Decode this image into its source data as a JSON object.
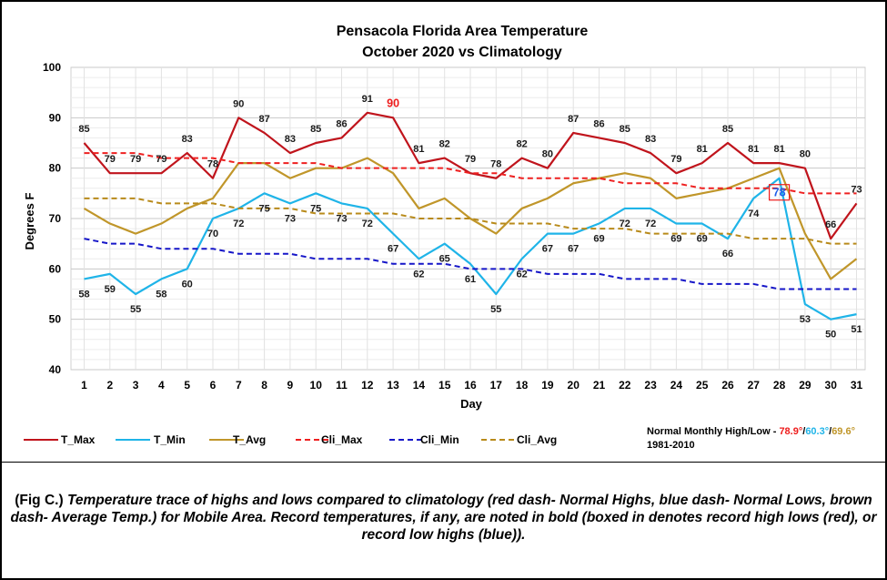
{
  "chart_data": {
    "type": "line",
    "title": "Pensacola Florida Area Temperature",
    "subtitle": "October 2020 vs Climatology",
    "xlabel": "Day",
    "ylabel": "Degrees F",
    "ylim": [
      40,
      100
    ],
    "yticks": [
      40,
      50,
      60,
      70,
      80,
      90,
      100
    ],
    "grid": true,
    "legend_position": "bottom",
    "x": [
      1,
      2,
      3,
      4,
      5,
      6,
      7,
      8,
      9,
      10,
      11,
      12,
      13,
      14,
      15,
      16,
      17,
      18,
      19,
      20,
      21,
      22,
      23,
      24,
      25,
      26,
      27,
      28,
      29,
      30,
      31
    ],
    "series": [
      {
        "name": "T_Max",
        "color": "#c0141c",
        "dash": false,
        "values": [
          85,
          79,
          79,
          79,
          83,
          78,
          90,
          87,
          83,
          85,
          86,
          91,
          90,
          81,
          82,
          79,
          78,
          82,
          80,
          87,
          86,
          85,
          83,
          79,
          81,
          85,
          81,
          81,
          80,
          66,
          73
        ]
      },
      {
        "name": "T_Min",
        "color": "#1fb4e8",
        "dash": false,
        "values": [
          58,
          59,
          55,
          58,
          60,
          70,
          72,
          75,
          73,
          75,
          73,
          72,
          67,
          62,
          65,
          61,
          55,
          62,
          67,
          67,
          69,
          72,
          72,
          69,
          69,
          66,
          74,
          78,
          53,
          50,
          51
        ]
      },
      {
        "name": "T_Avg",
        "color": "#c0962a",
        "dash": false,
        "values": [
          72,
          69,
          67,
          69,
          72,
          74,
          81,
          81,
          78,
          80,
          80,
          82,
          79,
          72,
          74,
          70,
          67,
          72,
          74,
          77,
          78,
          79,
          78,
          74,
          75,
          76,
          78,
          80,
          67,
          58,
          62
        ]
      },
      {
        "name": "Cli_Max",
        "color": "#ee2020",
        "dash": true,
        "values": [
          83,
          83,
          83,
          82,
          82,
          82,
          81,
          81,
          81,
          81,
          80,
          80,
          80,
          80,
          80,
          79,
          79,
          78,
          78,
          78,
          78,
          77,
          77,
          77,
          76,
          76,
          76,
          76,
          75,
          75,
          75
        ]
      },
      {
        "name": "Cli_Min",
        "color": "#1616c8",
        "dash": true,
        "values": [
          66,
          65,
          65,
          64,
          64,
          64,
          63,
          63,
          63,
          62,
          62,
          62,
          61,
          61,
          61,
          60,
          60,
          60,
          59,
          59,
          59,
          58,
          58,
          58,
          57,
          57,
          57,
          56,
          56,
          56,
          56
        ]
      },
      {
        "name": "Cli_Avg",
        "color": "#b88a1a",
        "dash": true,
        "values": [
          74,
          74,
          74,
          73,
          73,
          73,
          72,
          72,
          72,
          71,
          71,
          71,
          71,
          70,
          70,
          70,
          69,
          69,
          69,
          68,
          68,
          68,
          67,
          67,
          67,
          67,
          66,
          66,
          66,
          65,
          65
        ]
      }
    ],
    "data_labels": {
      "T_Max": [
        "85",
        "79",
        "79",
        "79",
        "83",
        "78",
        "90",
        "87",
        "83",
        "85",
        "86",
        "91",
        "90",
        "81",
        "82",
        "79",
        "78",
        "82",
        "80",
        "87",
        "86",
        "85",
        "83",
        "79",
        "81",
        "85",
        "81",
        "81",
        "80",
        "66",
        "73"
      ],
      "T_Min": [
        "58",
        "59",
        "55",
        "58",
        "60",
        "70",
        "72",
        "75",
        "73",
        "75",
        "73",
        "72",
        "67",
        "62",
        "65",
        "61",
        "55",
        "62",
        "67",
        "67",
        "69",
        "72",
        "72",
        "69",
        "69",
        "66",
        "74",
        "78",
        "53",
        "50",
        "51"
      ]
    },
    "records": [
      {
        "series": "T_Max",
        "day": 13,
        "value": 90,
        "color": "#ee1c1c",
        "boxed": false
      },
      {
        "series": "T_Min",
        "day": 28,
        "value": 78,
        "color": "#1f5ee8",
        "boxed": true,
        "box_color": "#ee1c1c"
      }
    ],
    "normals": {
      "label": "Normal Monthly High/Low - ",
      "high": "78.9°",
      "low": "60.3°",
      "avg": "69.6°",
      "sep": "/",
      "period": "1981-2010",
      "high_color": "#ee1c1c",
      "low_color": "#1fb4e8",
      "avg_color": "#c0962a"
    }
  },
  "caption": {
    "prefix": "(Fig C.) ",
    "text": "Temperature trace of highs and lows compared to climatology (red dash- Normal Highs, blue dash- Normal Lows, brown dash- Average Temp.) for Mobile Area. Record temperatures, if any, are noted in bold (boxed in denotes record high lows (red), or record low highs (blue))."
  }
}
